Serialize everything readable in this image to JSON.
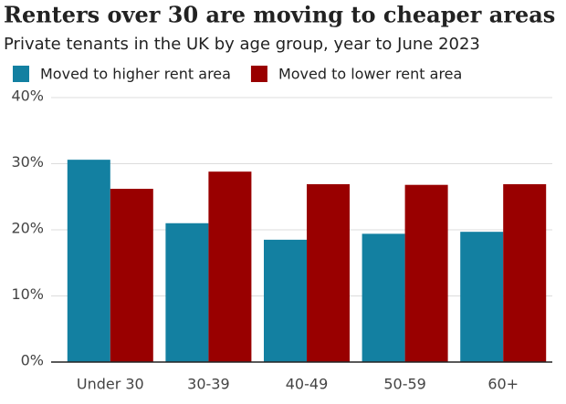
{
  "chart_data": {
    "type": "bar",
    "title": "Renters over 30 are moving to cheaper areas",
    "subtitle": "Private tenants in the UK by age group, year to June 2023",
    "categories": [
      "Under 30",
      "30-39",
      "40-49",
      "50-59",
      "60+"
    ],
    "series": [
      {
        "name": "Moved to higher rent area",
        "color": "#1380a1",
        "values": [
          30.6,
          21.0,
          18.5,
          19.4,
          19.7
        ]
      },
      {
        "name": "Moved to lower rent area",
        "color": "#990000",
        "values": [
          26.2,
          28.8,
          26.9,
          26.8,
          26.9
        ]
      }
    ],
    "ylim": [
      0,
      40
    ],
    "yticks": [
      {
        "value": 0,
        "label": "0%"
      },
      {
        "value": 10,
        "label": "10%"
      },
      {
        "value": 20,
        "label": "20%"
      },
      {
        "value": 30,
        "label": "30%"
      },
      {
        "value": 40,
        "label": "40%"
      }
    ],
    "grid": true
  }
}
